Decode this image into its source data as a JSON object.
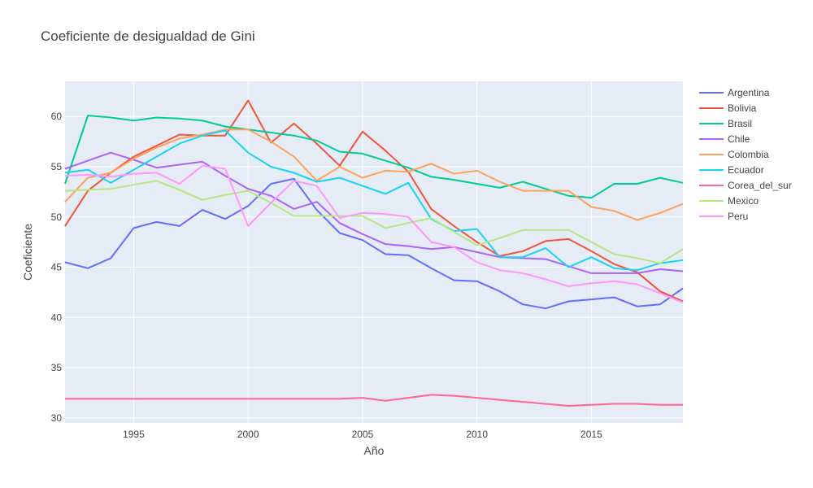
{
  "chart_data": {
    "type": "line",
    "title": "Coeficiente de desigualdad de Gini",
    "xlabel": "Año",
    "ylabel": "Coeficiente",
    "xlim": [
      1992,
      2019
    ],
    "ylim": [
      29.5,
      63.5
    ],
    "x_ticks": [
      1995,
      2000,
      2005,
      2010,
      2015
    ],
    "y_ticks": [
      30,
      35,
      40,
      45,
      50,
      55,
      60
    ],
    "grid": true,
    "legend_position": "right",
    "years": [
      1992,
      1993,
      1994,
      1995,
      1996,
      1997,
      1998,
      1999,
      2000,
      2001,
      2002,
      2003,
      2004,
      2005,
      2006,
      2007,
      2008,
      2009,
      2010,
      2011,
      2012,
      2013,
      2014,
      2015,
      2016,
      2017,
      2018,
      2019
    ],
    "series": [
      {
        "name": "Argentina",
        "color": "#636efa",
        "values": [
          45.5,
          44.9,
          45.9,
          48.9,
          49.5,
          49.1,
          50.7,
          49.8,
          51.1,
          53.3,
          53.8,
          50.7,
          48.4,
          47.7,
          46.3,
          46.2,
          44.9,
          43.7,
          43.6,
          42.6,
          41.3,
          40.9,
          41.6,
          41.8,
          42.0,
          41.1,
          41.3,
          42.9
        ]
      },
      {
        "name": "Bolivia",
        "color": "#ef553b",
        "values": [
          49.1,
          52.6,
          54.4,
          56.0,
          57.1,
          58.2,
          58.1,
          58.1,
          61.6,
          57.4,
          59.3,
          57.3,
          55.1,
          58.5,
          56.6,
          54.5,
          50.8,
          49.1,
          47.5,
          46.1,
          46.6,
          47.6,
          47.8,
          46.6,
          45.3,
          44.5,
          42.6,
          41.6
        ]
      },
      {
        "name": "Brasil",
        "color": "#00cc96",
        "values": [
          53.3,
          60.1,
          59.9,
          59.6,
          59.9,
          59.8,
          59.6,
          59.0,
          58.7,
          58.4,
          58.1,
          57.6,
          56.5,
          56.3,
          55.6,
          54.9,
          54.0,
          53.7,
          53.3,
          52.9,
          53.5,
          52.8,
          52.1,
          51.9,
          53.3,
          53.3,
          53.9,
          53.4
        ]
      },
      {
        "name": "Chile",
        "color": "#ab63fa",
        "values": [
          54.8,
          55.6,
          56.4,
          55.7,
          54.9,
          55.2,
          55.5,
          54.1,
          52.8,
          52.1,
          50.8,
          51.5,
          49.4,
          48.3,
          47.3,
          47.1,
          46.8,
          47.0,
          46.5,
          46.0,
          45.9,
          45.8,
          45.1,
          44.4,
          44.4,
          44.4,
          44.8,
          44.6
        ]
      },
      {
        "name": "Colombia",
        "color": "#ffa15a",
        "values": [
          51.5,
          53.9,
          54.4,
          55.8,
          56.9,
          57.8,
          58.2,
          58.7,
          58.7,
          57.5,
          56.0,
          53.6,
          55.0,
          53.9,
          54.6,
          54.5,
          55.3,
          54.3,
          54.6,
          53.5,
          52.6,
          52.6,
          52.6,
          51.0,
          50.6,
          49.7,
          50.4,
          51.3
        ]
      },
      {
        "name": "Ecuador",
        "color": "#19d3f3",
        "values": [
          54.4,
          54.7,
          53.4,
          54.7,
          56.0,
          57.3,
          58.1,
          58.6,
          56.4,
          55.0,
          54.4,
          53.5,
          53.9,
          53.1,
          52.3,
          53.4,
          49.8,
          48.6,
          48.8,
          46.0,
          46.0,
          46.9,
          45.0,
          46.0,
          44.9,
          44.7,
          45.4,
          45.7
        ]
      },
      {
        "name": "Corea_del_sur",
        "color": "#ff6692",
        "values": [
          31.9,
          31.9,
          31.9,
          31.9,
          31.9,
          31.9,
          31.9,
          31.9,
          31.9,
          31.9,
          31.9,
          31.9,
          31.9,
          32.0,
          31.7,
          32.0,
          32.3,
          32.2,
          32.0,
          31.8,
          31.6,
          31.4,
          31.2,
          31.3,
          31.4,
          31.4,
          31.3,
          31.3
        ]
      },
      {
        "name": "Mexico",
        "color": "#b6e880",
        "values": [
          52.6,
          52.7,
          52.8,
          53.2,
          53.6,
          52.7,
          51.7,
          52.2,
          52.6,
          51.4,
          50.1,
          50.1,
          50.1,
          50.1,
          48.9,
          49.4,
          49.9,
          48.5,
          47.2,
          47.9,
          48.7,
          48.7,
          48.7,
          47.5,
          46.3,
          45.9,
          45.4,
          46.8
        ]
      },
      {
        "name": "Peru",
        "color": "#ff97ff",
        "values": [
          54.1,
          54.2,
          54.0,
          54.3,
          54.4,
          53.3,
          55.1,
          54.8,
          49.1,
          51.4,
          53.6,
          53.1,
          49.9,
          50.4,
          50.3,
          50.0,
          47.5,
          47.0,
          45.5,
          44.7,
          44.4,
          43.8,
          43.1,
          43.4,
          43.6,
          43.3,
          42.4,
          41.5
        ]
      }
    ]
  }
}
